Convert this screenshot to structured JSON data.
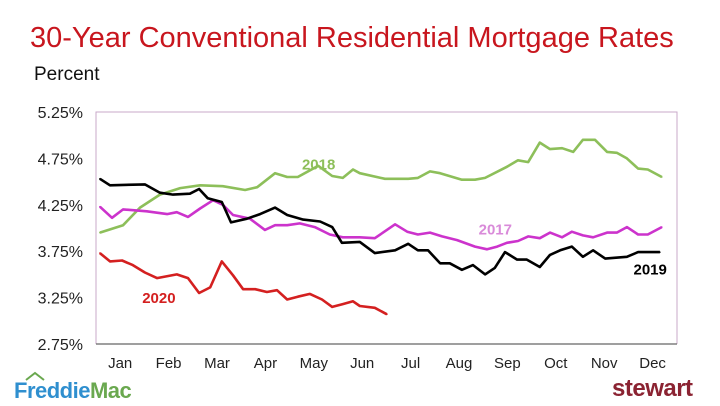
{
  "chart_data": {
    "type": "line",
    "title": "30-Year Conventional Residential Mortgage Rates",
    "ylabel": "Percent",
    "xlabel": "",
    "ylim": [
      2.75,
      5.25
    ],
    "xlim_months": [
      0,
      12
    ],
    "yticks": [
      5.25,
      4.75,
      4.25,
      3.75,
      3.25,
      2.75
    ],
    "ytick_labels": [
      "5.25%",
      "4.75%",
      "4.25%",
      "3.75%",
      "3.25%",
      "2.75%"
    ],
    "categories": [
      "Jan",
      "Feb",
      "Mar",
      "Apr",
      "May",
      "Jun",
      "Jul",
      "Aug",
      "Sep",
      "Oct",
      "Nov",
      "Dec"
    ],
    "grid": false,
    "series": [
      {
        "name": "2018",
        "color": "#8dbf5a",
        "label_color": "#8dbf5a",
        "x": [
          0.08,
          0.56,
          0.91,
          1.32,
          1.74,
          2.15,
          2.62,
          3.08,
          3.33,
          3.7,
          3.95,
          4.17,
          4.59,
          4.88,
          5.1,
          5.31,
          5.45,
          5.97,
          6.45,
          6.65,
          6.9,
          7.11,
          7.56,
          7.83,
          8.04,
          8.49,
          8.72,
          8.93,
          9.17,
          9.38,
          9.63,
          9.86,
          10.06,
          10.31,
          10.56,
          10.76,
          10.97,
          11.2,
          11.4,
          11.69
        ],
        "y": [
          3.95,
          4.03,
          4.22,
          4.36,
          4.43,
          4.46,
          4.45,
          4.41,
          4.44,
          4.59,
          4.55,
          4.55,
          4.67,
          4.56,
          4.54,
          4.63,
          4.59,
          4.53,
          4.53,
          4.54,
          4.61,
          4.59,
          4.52,
          4.52,
          4.54,
          4.66,
          4.73,
          4.71,
          4.92,
          4.85,
          4.86,
          4.82,
          4.95,
          4.95,
          4.82,
          4.81,
          4.75,
          4.64,
          4.63,
          4.55
        ]
      },
      {
        "name": "2017",
        "color": "#cc33cc",
        "label_color": "#d98ad9",
        "x": [
          0.08,
          0.33,
          0.56,
          1.05,
          1.47,
          1.67,
          1.9,
          2.15,
          2.42,
          2.62,
          2.83,
          3.18,
          3.49,
          3.7,
          3.95,
          4.21,
          4.52,
          4.83,
          5.1,
          5.45,
          5.76,
          6.18,
          6.43,
          6.65,
          6.9,
          7.15,
          7.46,
          7.83,
          8.08,
          8.29,
          8.49,
          8.72,
          8.93,
          9.17,
          9.38,
          9.63,
          9.83,
          10.06,
          10.27,
          10.56,
          10.76,
          10.97,
          11.2,
          11.4,
          11.69
        ],
        "y": [
          4.23,
          4.11,
          4.2,
          4.18,
          4.15,
          4.17,
          4.12,
          4.21,
          4.3,
          4.25,
          4.14,
          4.1,
          3.98,
          4.03,
          4.03,
          4.05,
          4.01,
          3.93,
          3.9,
          3.9,
          3.89,
          4.04,
          3.96,
          3.93,
          3.95,
          3.91,
          3.87,
          3.8,
          3.77,
          3.8,
          3.84,
          3.86,
          3.91,
          3.89,
          3.95,
          3.9,
          3.96,
          3.92,
          3.9,
          3.95,
          3.95,
          4.01,
          3.93,
          3.93,
          4.01
        ]
      },
      {
        "name": "2019",
        "color": "#000000",
        "label_color": "#000000",
        "x": [
          0.08,
          0.29,
          1.01,
          1.32,
          1.59,
          1.94,
          2.13,
          2.31,
          2.6,
          2.79,
          3.12,
          3.39,
          3.7,
          3.95,
          4.28,
          4.63,
          4.88,
          5.08,
          5.45,
          5.76,
          6.18,
          6.45,
          6.65,
          6.86,
          7.11,
          7.31,
          7.56,
          7.79,
          8.04,
          8.24,
          8.45,
          8.7,
          8.9,
          9.17,
          9.38,
          9.59,
          9.83,
          10.06,
          10.27,
          10.52,
          10.97,
          11.2,
          11.65
        ],
        "y": [
          4.53,
          4.46,
          4.47,
          4.38,
          4.36,
          4.37,
          4.42,
          4.32,
          4.28,
          4.06,
          4.1,
          4.15,
          4.22,
          4.14,
          4.09,
          4.07,
          4.01,
          3.84,
          3.85,
          3.73,
          3.76,
          3.83,
          3.76,
          3.76,
          3.62,
          3.62,
          3.55,
          3.6,
          3.5,
          3.57,
          3.74,
          3.66,
          3.66,
          3.58,
          3.71,
          3.76,
          3.8,
          3.69,
          3.76,
          3.67,
          3.69,
          3.74,
          3.74
        ]
      },
      {
        "name": "2020",
        "color": "#d42020",
        "label_color": "#d42020",
        "x": [
          0.08,
          0.29,
          0.54,
          0.76,
          1.01,
          1.26,
          1.67,
          1.9,
          2.13,
          2.36,
          2.6,
          2.83,
          3.04,
          3.29,
          3.53,
          3.74,
          3.95,
          4.17,
          4.42,
          4.67,
          4.88,
          5.1,
          5.31,
          5.45,
          5.76,
          6.01
        ],
        "y": [
          3.73,
          3.64,
          3.65,
          3.6,
          3.52,
          3.46,
          3.5,
          3.46,
          3.3,
          3.36,
          3.64,
          3.49,
          3.34,
          3.34,
          3.31,
          3.33,
          3.23,
          3.26,
          3.29,
          3.23,
          3.15,
          3.18,
          3.21,
          3.16,
          3.14,
          3.07
        ]
      }
    ]
  },
  "logos": {
    "left": "FreddieMac",
    "left_part1": "Freddie",
    "left_part2": "Mac",
    "right": "stewart"
  },
  "colors": {
    "title": "#c8161e",
    "plot_border": "#c9a9c9"
  }
}
